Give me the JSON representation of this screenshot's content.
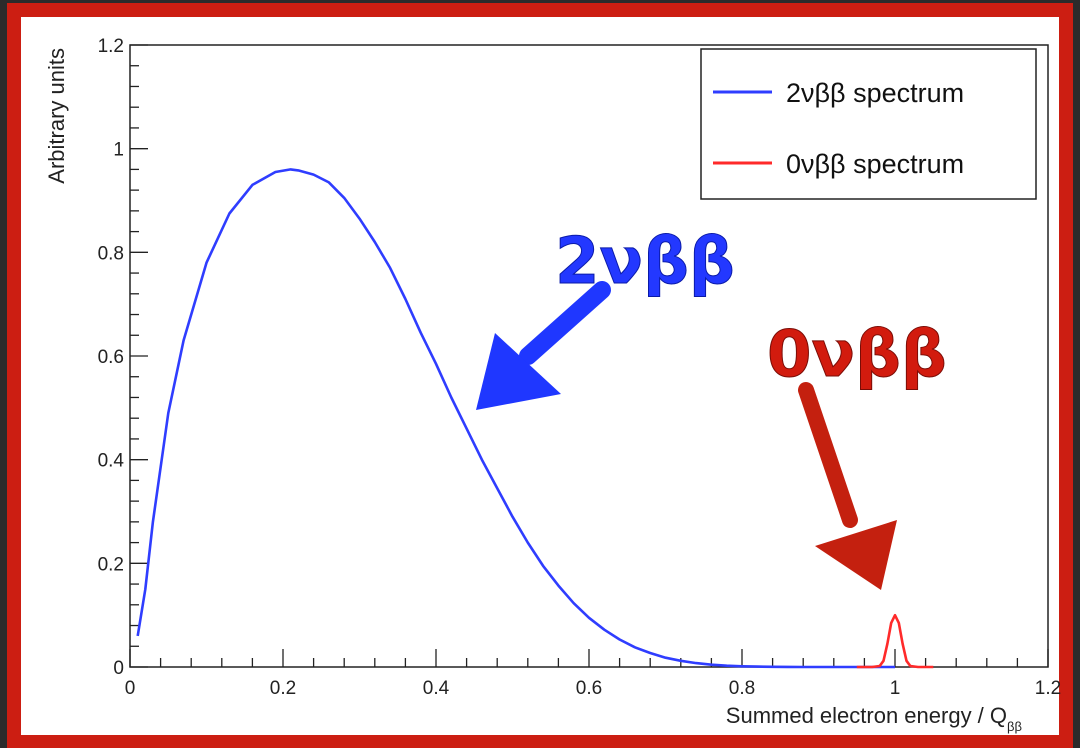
{
  "chart_data": {
    "type": "line",
    "xlabel": "Summed electron energy / Q",
    "xlabel_sub": "ββ",
    "ylabel": "Arbitrary units",
    "xlim": [
      0,
      1.2
    ],
    "ylim": [
      0,
      1.2
    ],
    "x_ticks": [
      {
        "value": 0,
        "label": "0"
      },
      {
        "value": 0.2,
        "label": "0.2"
      },
      {
        "value": 0.4,
        "label": "0.4"
      },
      {
        "value": 0.6,
        "label": "0.6"
      },
      {
        "value": 0.8,
        "label": "0.8"
      },
      {
        "value": 1.0,
        "label": "1"
      },
      {
        "value": 1.2,
        "label": "1.2"
      }
    ],
    "y_ticks": [
      {
        "value": 0,
        "label": "0"
      },
      {
        "value": 0.2,
        "label": "0.2"
      },
      {
        "value": 0.4,
        "label": "0.4"
      },
      {
        "value": 0.6,
        "label": "0.6"
      },
      {
        "value": 0.8,
        "label": "0.8"
      },
      {
        "value": 1.0,
        "label": "1"
      },
      {
        "value": 1.2,
        "label": "1.2"
      }
    ],
    "legend_position": "top-right",
    "grid": false,
    "series": [
      {
        "name": "2νββ spectrum",
        "color": "#2f3dff",
        "x": [
          0.01,
          0.02,
          0.03,
          0.05,
          0.07,
          0.1,
          0.13,
          0.16,
          0.19,
          0.21,
          0.22,
          0.24,
          0.26,
          0.28,
          0.3,
          0.32,
          0.34,
          0.36,
          0.38,
          0.4,
          0.42,
          0.44,
          0.46,
          0.48,
          0.5,
          0.52,
          0.54,
          0.56,
          0.58,
          0.6,
          0.62,
          0.64,
          0.66,
          0.68,
          0.7,
          0.72,
          0.74,
          0.76,
          0.78,
          0.8,
          0.82,
          0.84,
          0.86,
          0.88,
          0.9,
          0.92,
          0.94,
          0.96,
          0.98,
          1.0
        ],
        "y": [
          0.06,
          0.15,
          0.28,
          0.49,
          0.63,
          0.78,
          0.875,
          0.93,
          0.955,
          0.96,
          0.958,
          0.95,
          0.935,
          0.905,
          0.865,
          0.82,
          0.77,
          0.71,
          0.645,
          0.585,
          0.52,
          0.46,
          0.4,
          0.345,
          0.29,
          0.24,
          0.195,
          0.157,
          0.123,
          0.095,
          0.072,
          0.053,
          0.038,
          0.027,
          0.018,
          0.012,
          0.0075,
          0.0045,
          0.0026,
          0.0014,
          0.0007,
          0.0003,
          0.00012,
          4e-05,
          1e-05,
          0,
          0,
          0,
          0,
          0
        ]
      },
      {
        "name": "0νββ spectrum",
        "color": "#ff2a2a",
        "x": [
          0.95,
          0.97,
          0.98,
          0.985,
          0.99,
          0.995,
          1.0,
          1.005,
          1.01,
          1.015,
          1.02,
          1.03,
          1.05
        ],
        "y": [
          0,
          0,
          0.002,
          0.012,
          0.045,
          0.085,
          0.1,
          0.085,
          0.045,
          0.012,
          0.002,
          0,
          0
        ]
      }
    ],
    "annotations": [
      {
        "text": "2νββ",
        "color": "#2338ff",
        "arrow_color": "#1f37ff"
      },
      {
        "text": "0νββ",
        "color": "#d21b0e",
        "arrow_color": "#c4200f"
      }
    ]
  }
}
